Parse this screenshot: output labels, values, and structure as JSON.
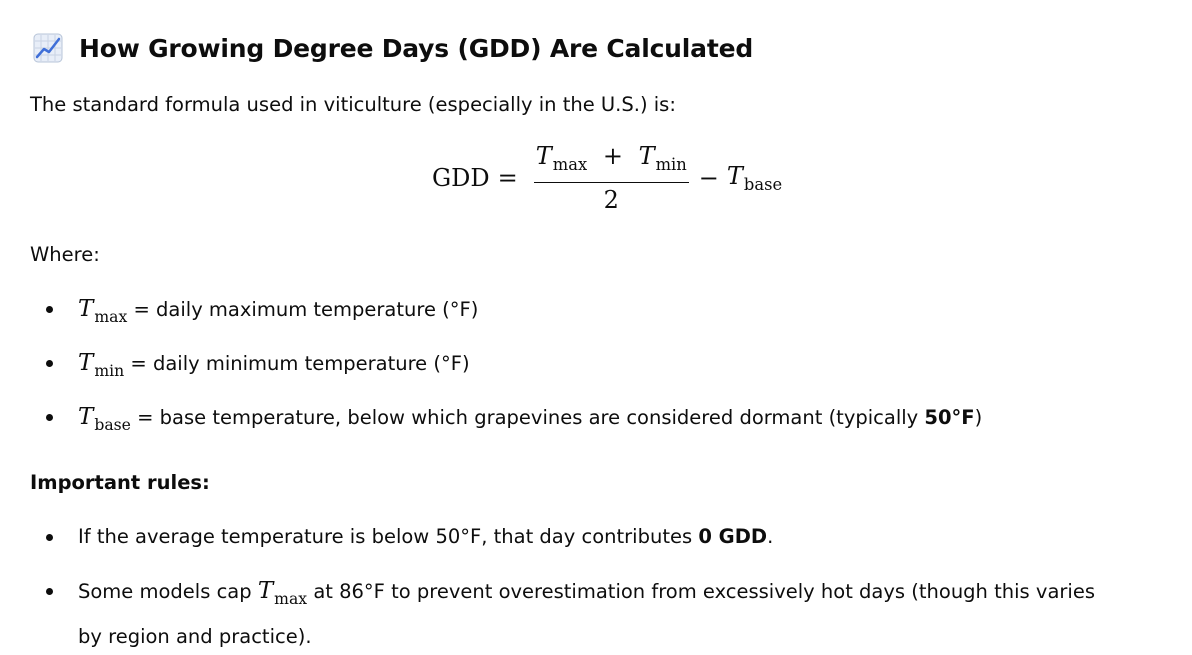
{
  "heading": {
    "icon": "chart-increasing-emoji",
    "text": "How Growing Degree Days (GDD) Are Calculated"
  },
  "intro": "The standard formula used in viticulture (especially in the U.S.) is:",
  "formula": {
    "lhs": "GDD",
    "equals": "=",
    "var_t": "T",
    "sub_max": "max",
    "sub_min": "min",
    "sub_base": "base",
    "plus": "+",
    "minus": "−",
    "denominator": "2"
  },
  "where_label": "Where:",
  "definitions": [
    {
      "var": "T",
      "sub": "max",
      "text": " = daily maximum temperature (°F)"
    },
    {
      "var": "T",
      "sub": "min",
      "text": " = daily minimum temperature (°F)"
    },
    {
      "var": "T",
      "sub": "base",
      "text": " = base temperature, below which grapevines are considered dormant (typically ",
      "bold": "50°F",
      "tail": ")"
    }
  ],
  "rules_label": "Important rules:",
  "rules": [
    {
      "text": "If the average temperature is below 50°F, that day contributes ",
      "bold": "0 GDD",
      "tail": "."
    },
    {
      "pre": "Some models cap ",
      "var": "T",
      "sub": "max",
      "line1": " at 86°F to prevent overestimation from excessively hot days (though this varies",
      "line2": "by region and practice)."
    }
  ]
}
